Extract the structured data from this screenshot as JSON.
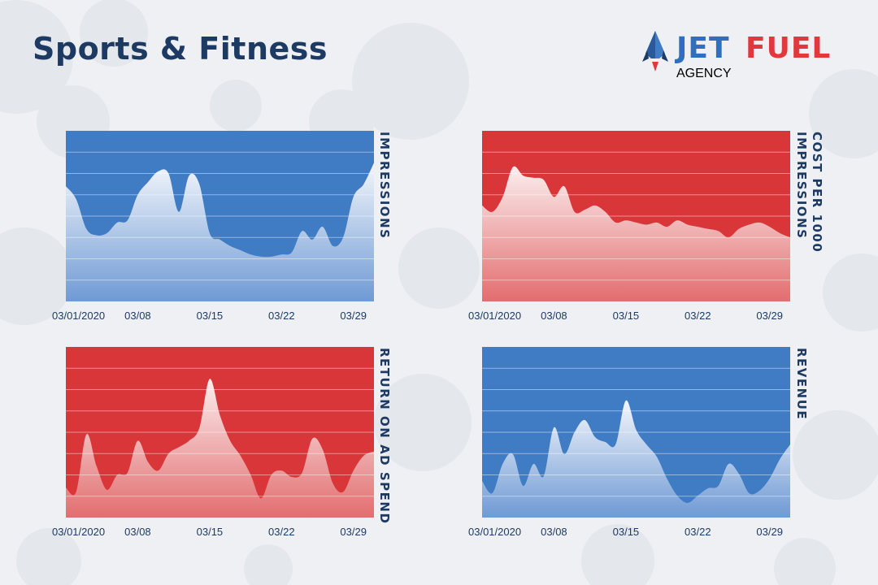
{
  "page": {
    "title": "Sports & Fitness"
  },
  "logo": {
    "brand_part1": "JET",
    "brand_part2": "FUEL",
    "subtitle": "AGENCY"
  },
  "colors": {
    "blue": "#3f7cc4",
    "red": "#d9363a",
    "navy": "#1d3a63"
  },
  "chart_data": [
    {
      "type": "area",
      "title": "",
      "ylabel": "IMPRESSIONS",
      "theme": "blue",
      "x_tick_labels": [
        "03/01/2020",
        "03/08",
        "03/15",
        "03/22",
        "03/29"
      ],
      "x_ticks": [
        1,
        8,
        15,
        22,
        29
      ],
      "x": [
        1,
        2,
        3,
        4,
        5,
        6,
        7,
        8,
        9,
        10,
        11,
        12,
        13,
        14,
        15,
        16,
        17,
        18,
        19,
        20,
        21,
        22,
        23,
        24,
        25,
        26,
        27,
        28,
        29,
        30,
        31
      ],
      "values": [
        5.4,
        4.8,
        3.4,
        3.1,
        3.2,
        3.7,
        3.8,
        5.0,
        5.6,
        6.1,
        6.0,
        4.2,
        5.9,
        5.5,
        3.2,
        2.9,
        2.6,
        2.4,
        2.2,
        2.1,
        2.1,
        2.2,
        2.3,
        3.3,
        2.9,
        3.5,
        2.6,
        3.0,
        4.9,
        5.5,
        6.5
      ],
      "grid": true,
      "ylim": [
        0,
        8
      ]
    },
    {
      "type": "area",
      "title": "",
      "ylabel": "COST PER 1000\nIMPRESSIONS",
      "theme": "red",
      "x_tick_labels": [
        "03/01/2020",
        "03/08",
        "03/15",
        "03/22",
        "03/29"
      ],
      "x_ticks": [
        1,
        8,
        15,
        22,
        29
      ],
      "x": [
        1,
        2,
        3,
        4,
        5,
        6,
        7,
        8,
        9,
        10,
        11,
        12,
        13,
        14,
        15,
        16,
        17,
        18,
        19,
        20,
        21,
        22,
        23,
        24,
        25,
        26,
        27,
        28,
        29,
        30,
        31
      ],
      "values": [
        4.5,
        4.2,
        4.9,
        6.3,
        5.9,
        5.8,
        5.7,
        4.9,
        5.4,
        4.2,
        4.3,
        4.5,
        4.2,
        3.7,
        3.8,
        3.7,
        3.6,
        3.7,
        3.5,
        3.8,
        3.6,
        3.5,
        3.4,
        3.3,
        3.0,
        3.4,
        3.6,
        3.7,
        3.5,
        3.2,
        3.0
      ],
      "grid": true,
      "ylim": [
        0,
        8
      ]
    },
    {
      "type": "area",
      "title": "",
      "ylabel": "RETURN ON AD SPEND",
      "theme": "red",
      "x_tick_labels": [
        "03/01/2020",
        "03/08",
        "03/15",
        "03/22",
        "03/29"
      ],
      "x_ticks": [
        1,
        8,
        15,
        22,
        29
      ],
      "x": [
        1,
        2,
        3,
        4,
        5,
        6,
        7,
        8,
        9,
        10,
        11,
        12,
        13,
        14,
        15,
        16,
        17,
        18,
        19,
        20,
        21,
        22,
        23,
        24,
        25,
        26,
        27,
        28,
        29,
        30,
        31
      ],
      "values": [
        1.4,
        1.2,
        3.9,
        2.4,
        1.3,
        2.0,
        2.1,
        3.6,
        2.6,
        2.2,
        3.0,
        3.3,
        3.6,
        4.2,
        6.5,
        4.8,
        3.6,
        2.9,
        2.0,
        0.9,
        2.0,
        2.2,
        1.9,
        2.1,
        3.7,
        3.2,
        1.6,
        1.2,
        2.2,
        2.9,
        3.1
      ],
      "grid": true,
      "ylim": [
        0,
        8
      ]
    },
    {
      "type": "area",
      "title": "",
      "ylabel": "REVENUE",
      "theme": "blue",
      "x_tick_labels": [
        "03/01/2020",
        "03/08",
        "03/15",
        "03/22",
        "03/29"
      ],
      "x_ticks": [
        1,
        8,
        15,
        22,
        29
      ],
      "x": [
        1,
        2,
        3,
        4,
        5,
        6,
        7,
        8,
        9,
        10,
        11,
        12,
        13,
        14,
        15,
        16,
        17,
        18,
        19,
        20,
        21,
        22,
        23,
        24,
        25,
        26,
        27,
        28,
        29,
        30,
        31
      ],
      "values": [
        1.5,
        1.0,
        2.2,
        2.6,
        1.3,
        2.2,
        1.7,
        3.7,
        2.6,
        3.5,
        4.0,
        3.3,
        3.1,
        3.0,
        4.8,
        3.6,
        3.0,
        2.5,
        1.6,
        0.9,
        0.6,
        0.9,
        1.2,
        1.3,
        2.2,
        1.8,
        1.0,
        1.1,
        1.6,
        2.4,
        3.0
      ],
      "grid": true,
      "ylim": [
        0,
        7
      ]
    }
  ]
}
